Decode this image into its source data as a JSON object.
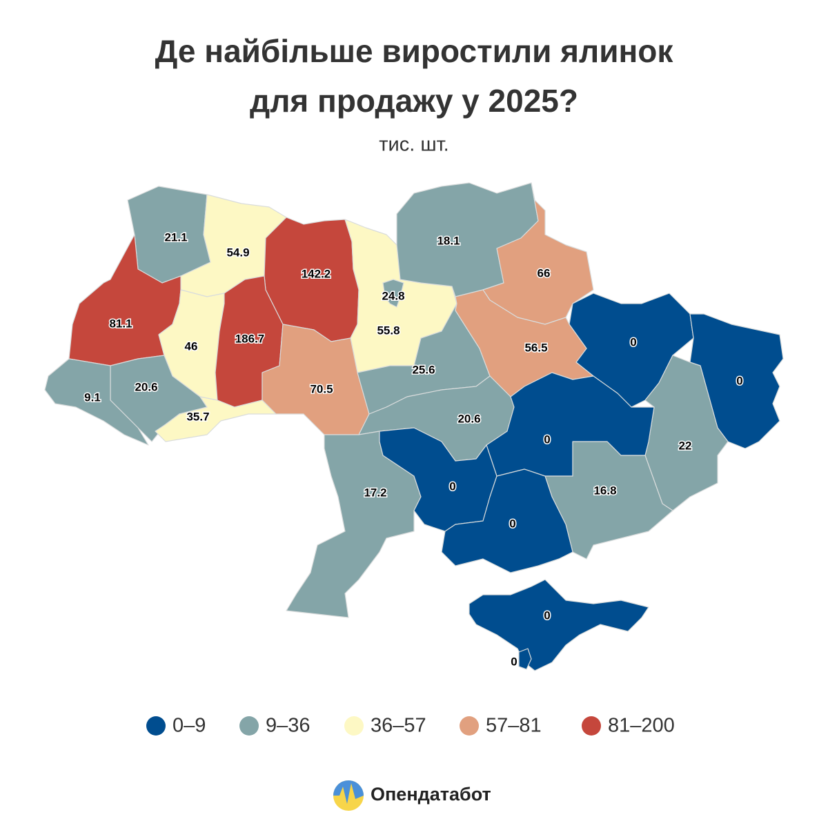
{
  "chart_data": {
    "type": "choropleth",
    "title": [
      "Де найбільше виростили ялинок",
      "для продажу у 2025?"
    ],
    "subtitle": "тис. шт.",
    "legend": [
      {
        "label": "0–9",
        "color": "#004d8f"
      },
      {
        "label": "9–36",
        "color": "#84a5a8"
      },
      {
        "label": "36–57",
        "color": "#fdf8c4"
      },
      {
        "label": "57–81",
        "color": "#e1a07f"
      },
      {
        "label": "81–200",
        "color": "#c5473c"
      }
    ],
    "regions": [
      {
        "value": 21.1,
        "color": "#84a5a8"
      },
      {
        "value": 54.9,
        "color": "#fdf8c4"
      },
      {
        "value": 142.2,
        "color": "#c5473c"
      },
      {
        "value": 55.8,
        "color": "#fdf8c4"
      },
      {
        "value": 24.8,
        "color": "#84a5a8"
      },
      {
        "value": 18.1,
        "color": "#84a5a8"
      },
      {
        "value": 66,
        "color": "#e1a07f"
      },
      {
        "value": 0,
        "color": "#004d8f"
      },
      {
        "value": 0,
        "color": "#004d8f"
      },
      {
        "value": 22,
        "color": "#84a5a8"
      },
      {
        "value": 81.1,
        "color": "#c5473c"
      },
      {
        "value": 46,
        "color": "#fdf8c4"
      },
      {
        "value": 186.7,
        "color": "#c5473c"
      },
      {
        "value": 70.5,
        "color": "#e1a07f"
      },
      {
        "value": 25.6,
        "color": "#84a5a8"
      },
      {
        "value": 56.5,
        "color": "#e1a07f"
      },
      {
        "value": 20.6,
        "color": "#84a5a8"
      },
      {
        "value": 0,
        "color": "#004d8f"
      },
      {
        "value": 16.8,
        "color": "#84a5a8"
      },
      {
        "value": 20.6,
        "color": "#84a5a8"
      },
      {
        "value": 9.1,
        "color": "#84a5a8"
      },
      {
        "value": 35.7,
        "color": "#fdf8c4"
      },
      {
        "value": 17.2,
        "color": "#84a5a8"
      },
      {
        "value": 0,
        "color": "#004d8f"
      },
      {
        "value": 0,
        "color": "#004d8f"
      },
      {
        "value": 0,
        "color": "#004d8f"
      },
      {
        "value": 0,
        "color": "#004d8f"
      }
    ],
    "source": "Опендатабот"
  }
}
